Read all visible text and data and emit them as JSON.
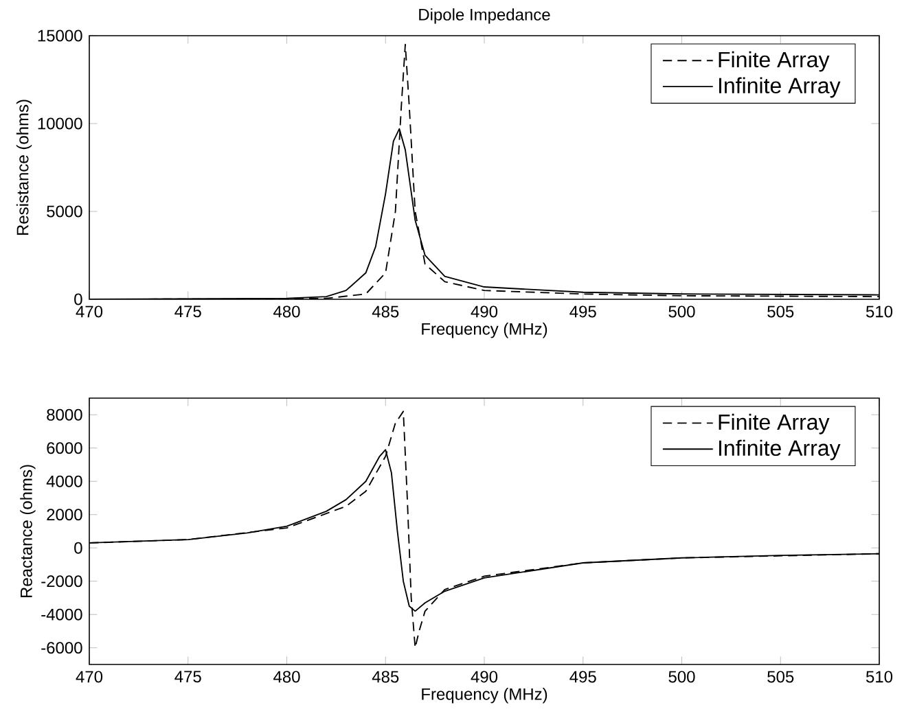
{
  "chart_data": [
    {
      "type": "line",
      "title": "Dipole Impedance",
      "xlabel": "Frequency (MHz)",
      "ylabel": "Resistance (ohms)",
      "xlim": [
        470,
        510
      ],
      "xticks": [
        470,
        475,
        480,
        485,
        490,
        495,
        500,
        505,
        510
      ],
      "ylim": [
        0,
        15000
      ],
      "yticks": [
        0,
        5000,
        10000,
        15000
      ],
      "legend": "top right",
      "series": [
        {
          "name": "Finite Array",
          "color": "#000000",
          "line_style": "dashed",
          "x": [
            470,
            480,
            482,
            484,
            485,
            485.5,
            485.8,
            486,
            486.2,
            486.5,
            487,
            488,
            490,
            495,
            500,
            510
          ],
          "values": [
            0,
            20,
            50,
            300,
            1500,
            5000,
            11000,
            14500,
            11000,
            5000,
            2000,
            1000,
            500,
            300,
            200,
            150
          ]
        },
        {
          "name": "Infinite Array",
          "color": "#000000",
          "line_style": "solid",
          "x": [
            470,
            480,
            482,
            483,
            484,
            484.5,
            485,
            485.4,
            485.7,
            486,
            486.5,
            487,
            488,
            490,
            495,
            500,
            510
          ],
          "values": [
            0,
            50,
            150,
            500,
            1500,
            3000,
            6000,
            9000,
            9700,
            8500,
            4500,
            2500,
            1300,
            700,
            400,
            300,
            250
          ]
        }
      ]
    },
    {
      "type": "line",
      "xlabel": "Frequency (MHz)",
      "ylabel": "Reactance (ohms)",
      "xlim": [
        470,
        510
      ],
      "xticks": [
        470,
        475,
        480,
        485,
        490,
        495,
        500,
        505,
        510
      ],
      "ylim": [
        -7000,
        9000
      ],
      "yticks": [
        -6000,
        -4000,
        -2000,
        0,
        2000,
        4000,
        6000,
        8000
      ],
      "legend": "top right",
      "series": [
        {
          "name": "Finite Array",
          "color": "#000000",
          "line_style": "dashed",
          "x": [
            470,
            475,
            480,
            483,
            484,
            485,
            485.5,
            485.9,
            486.1,
            486.3,
            486.5,
            486.7,
            487,
            488,
            490,
            495,
            500,
            510
          ],
          "values": [
            300,
            500,
            1200,
            2500,
            3400,
            5500,
            7500,
            8200,
            3000,
            -3000,
            -6000,
            -5000,
            -3800,
            -2500,
            -1700,
            -900,
            -600,
            -350
          ]
        },
        {
          "name": "Infinite Array",
          "color": "#000000",
          "line_style": "solid",
          "x": [
            470,
            475,
            478,
            480,
            482,
            483,
            484,
            484.7,
            485,
            485.3,
            485.6,
            485.9,
            486.2,
            486.5,
            487,
            488,
            490,
            495,
            500,
            505,
            510
          ],
          "values": [
            300,
            500,
            900,
            1300,
            2200,
            2900,
            4000,
            5500,
            5900,
            4500,
            1000,
            -2000,
            -3500,
            -3800,
            -3300,
            -2600,
            -1800,
            -900,
            -600,
            -450,
            -350
          ]
        }
      ]
    }
  ]
}
